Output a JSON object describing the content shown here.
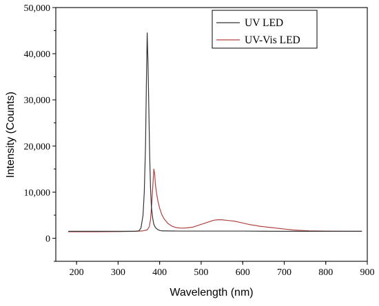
{
  "chart_data": {
    "type": "line",
    "xlabel": "Wavelength (nm)",
    "ylabel": "Intensity (Counts)",
    "xlim": [
      150,
      900
    ],
    "ylim": [
      -5000,
      50000
    ],
    "x_ticks": [
      200,
      300,
      400,
      500,
      600,
      700,
      800,
      900
    ],
    "x_tick_labels": [
      "200",
      "300",
      "400",
      "500",
      "600",
      "700",
      "800",
      "900"
    ],
    "y_ticks": [
      0,
      10000,
      20000,
      30000,
      40000,
      50000
    ],
    "y_tick_labels": [
      "0",
      "10,000",
      "20,000",
      "30,000",
      "40,000",
      "50,000"
    ],
    "legend_position": "top-right",
    "series": [
      {
        "name": "UV LED",
        "color": "#333333",
        "x": [
          180,
          250,
          300,
          340,
          350,
          355,
          360,
          363,
          366,
          368,
          370,
          372,
          374,
          376,
          378,
          380,
          383,
          386,
          390,
          395,
          400,
          405,
          410,
          450,
          500,
          600,
          700,
          800,
          887
        ],
        "y": [
          1500,
          1500,
          1500,
          1500,
          1600,
          2200,
          5000,
          10000,
          20000,
          33000,
          44500,
          38000,
          28000,
          18000,
          11000,
          7000,
          4500,
          3000,
          2300,
          1900,
          1700,
          1600,
          1600,
          1550,
          1550,
          1550,
          1500,
          1500,
          1500
        ]
      },
      {
        "name": "UV-Vis LED",
        "color": "#b0413e",
        "x": [
          180,
          250,
          300,
          340,
          360,
          370,
          375,
          378,
          381,
          384,
          386,
          388,
          390,
          393,
          396,
          400,
          405,
          410,
          420,
          430,
          440,
          450,
          460,
          470,
          480,
          490,
          500,
          510,
          520,
          530,
          540,
          550,
          560,
          570,
          580,
          590,
          600,
          610,
          620,
          630,
          640,
          650,
          660,
          670,
          680,
          690,
          700,
          710,
          720,
          740,
          760,
          800,
          850,
          887
        ],
        "y": [
          1400,
          1400,
          1450,
          1500,
          1600,
          1800,
          2500,
          4000,
          7500,
          12000,
          15000,
          14000,
          11500,
          9500,
          8000,
          6500,
          5200,
          4300,
          3200,
          2600,
          2300,
          2200,
          2200,
          2300,
          2400,
          2700,
          3000,
          3300,
          3600,
          3900,
          4000,
          4000,
          3900,
          3800,
          3700,
          3500,
          3300,
          3100,
          2900,
          2800,
          2600,
          2500,
          2400,
          2300,
          2200,
          2100,
          2000,
          1900,
          1800,
          1700,
          1600,
          1550,
          1500,
          1500
        ]
      }
    ]
  }
}
